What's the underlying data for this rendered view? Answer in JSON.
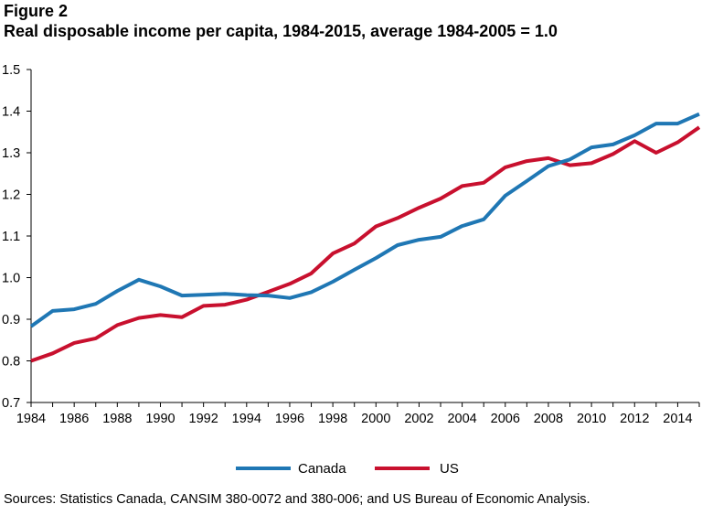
{
  "figure_label": "Figure 2",
  "title": "Real disposable income per capita, 1984-2015, average 1984-2005 = 1.0",
  "source": "Sources: Statistics Canada, CANSIM 380-0072 and 380-006; and US Bureau of Economic Analysis.",
  "chart_data": {
    "type": "line",
    "title": "Real disposable income per capita, 1984-2015, average 1984-2005 = 1.0",
    "xlabel": "",
    "ylabel": "",
    "xlim": [
      1984,
      2015
    ],
    "ylim": [
      0.7,
      1.5
    ],
    "x_ticks": [
      "1984",
      "1986",
      "1988",
      "1990",
      "1992",
      "1994",
      "1996",
      "1998",
      "2000",
      "2002",
      "2004",
      "2006",
      "2008",
      "2010",
      "2012",
      "2014"
    ],
    "y_ticks": [
      "0.7",
      "0.8",
      "0.9",
      "1.0",
      "1.1",
      "1.2",
      "1.3",
      "1.4",
      "1.5"
    ],
    "x": [
      1984,
      1985,
      1986,
      1987,
      1988,
      1989,
      1990,
      1991,
      1992,
      1993,
      1994,
      1995,
      1996,
      1997,
      1998,
      1999,
      2000,
      2001,
      2002,
      2003,
      2004,
      2005,
      2006,
      2007,
      2008,
      2009,
      2010,
      2011,
      2012,
      2013,
      2014,
      2015
    ],
    "series": [
      {
        "name": "Canada",
        "color": "#1f77b4",
        "values": [
          0.883,
          0.92,
          0.924,
          0.937,
          0.968,
          0.995,
          0.979,
          0.957,
          0.959,
          0.961,
          0.958,
          0.957,
          0.951,
          0.965,
          0.99,
          1.019,
          1.047,
          1.078,
          1.091,
          1.098,
          1.124,
          1.14,
          1.197,
          1.232,
          1.268,
          1.284,
          1.313,
          1.32,
          1.342,
          1.37,
          1.37,
          1.393
        ]
      },
      {
        "name": "US",
        "color": "#c8102e",
        "values": [
          0.8,
          0.818,
          0.843,
          0.854,
          0.886,
          0.903,
          0.91,
          0.905,
          0.932,
          0.935,
          0.947,
          0.966,
          0.985,
          1.01,
          1.058,
          1.082,
          1.123,
          1.143,
          1.168,
          1.19,
          1.22,
          1.228,
          1.265,
          1.28,
          1.287,
          1.27,
          1.275,
          1.297,
          1.328,
          1.3,
          1.325,
          1.361
        ]
      }
    ],
    "grid": false,
    "legend": "bottom-center"
  },
  "colors": {
    "axis": "#000000"
  }
}
